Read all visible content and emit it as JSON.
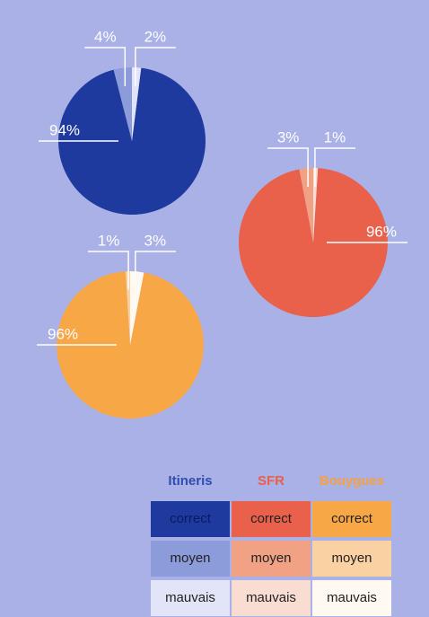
{
  "chart_data": [
    {
      "type": "pie",
      "title": "Itineris",
      "categories": [
        "correct",
        "moyen",
        "mauvais"
      ],
      "values": [
        94,
        4,
        2
      ],
      "value_labels": [
        "94%",
        "4%",
        "2%"
      ],
      "colors": [
        "#1f3a9e",
        "#8c9bd9",
        "#e2e5f7"
      ],
      "title_color": "#2f4cae"
    },
    {
      "type": "pie",
      "title": "SFR",
      "categories": [
        "correct",
        "moyen",
        "mauvais"
      ],
      "values": [
        96,
        3,
        1
      ],
      "value_labels": [
        "96%",
        "3%",
        "1%"
      ],
      "colors": [
        "#e9604b",
        "#f1a184",
        "#f9ddd2"
      ],
      "title_color": "#e9604b"
    },
    {
      "type": "pie",
      "title": "Bouygues",
      "categories": [
        "correct",
        "moyen",
        "mauvais"
      ],
      "values": [
        96,
        1,
        3
      ],
      "value_labels": [
        "96%",
        "1%",
        "3%"
      ],
      "colors": [
        "#f8a747",
        "#fad1a2",
        "#fff9f1"
      ],
      "title_color": "#f7a040"
    }
  ]
}
